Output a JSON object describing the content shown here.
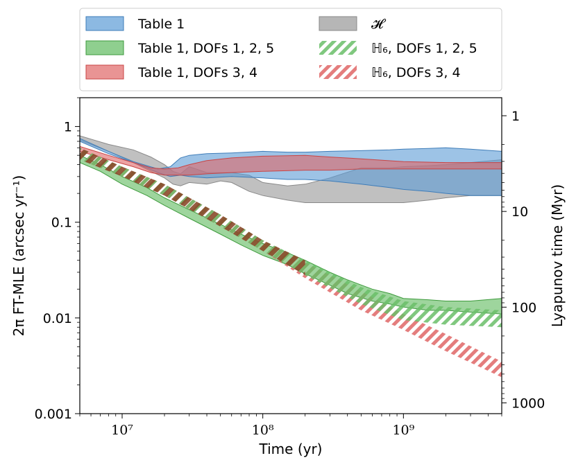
{
  "chart_data": {
    "type": "area",
    "xscale": "log",
    "yscale": "log",
    "xlim": [
      5000000,
      5000000000
    ],
    "ylim": [
      0.001,
      2
    ],
    "xlabel": "Time (yr)",
    "ylabel": "2π FT-MLE (arcsec yr⁻¹)",
    "ylabel_right": "Lyapunov time (Myr)",
    "x_ticks": [
      {
        "value": 10000000,
        "label": "10⁷"
      },
      {
        "value": 100000000,
        "label": "10⁸"
      },
      {
        "value": 1000000000,
        "label": "10⁹"
      }
    ],
    "y_ticks": [
      {
        "value": 1,
        "label": "1"
      },
      {
        "value": 0.1,
        "label": "0.1"
      },
      {
        "value": 0.01,
        "label": "0.01"
      },
      {
        "value": 0.001,
        "label": "0.001"
      }
    ],
    "y_right_ticks": [
      {
        "value": 1,
        "label": "1"
      },
      {
        "value": 10,
        "label": "10"
      },
      {
        "value": 100,
        "label": "100"
      },
      {
        "value": 1000,
        "label": "1000"
      }
    ],
    "legend": {
      "placement": "top, outside",
      "columns": 2
    },
    "series": [
      {
        "name": "Table 1",
        "style": "band",
        "color": "#5b9bd5",
        "x": [
          5000000.0,
          8000000.0,
          12000000.0,
          18000000.0,
          22000000.0,
          26000000.0,
          30000000.0,
          40000000.0,
          60000000.0,
          100000000.0,
          150000000.0,
          200000000.0,
          300000000.0,
          500000000.0,
          800000000.0,
          1000000000.0,
          1500000000.0,
          2000000000.0,
          3000000000.0,
          5000000000.0
        ],
        "lower": [
          0.7,
          0.52,
          0.42,
          0.33,
          0.3,
          0.31,
          0.3,
          0.29,
          0.3,
          0.29,
          0.28,
          0.28,
          0.27,
          0.25,
          0.23,
          0.22,
          0.21,
          0.2,
          0.19,
          0.19
        ],
        "upper": [
          0.75,
          0.55,
          0.43,
          0.36,
          0.38,
          0.47,
          0.5,
          0.52,
          0.53,
          0.55,
          0.54,
          0.54,
          0.55,
          0.56,
          0.57,
          0.58,
          0.59,
          0.6,
          0.58,
          0.55
        ]
      },
      {
        "name": "Table 1, DOFs 1, 2, 5",
        "style": "band",
        "color": "#6abf69",
        "x": [
          5000000.0,
          7000000.0,
          10000000.0,
          15000000.0,
          20000000.0,
          30000000.0,
          50000000.0,
          70000000.0,
          100000000.0,
          150000000.0,
          200000000.0,
          300000000.0,
          400000000.0,
          600000000.0,
          800000000.0,
          1000000000.0,
          1500000000.0,
          2000000000.0,
          3000000000.0,
          5000000000.0
        ],
        "lower": [
          0.42,
          0.34,
          0.25,
          0.19,
          0.15,
          0.11,
          0.075,
          0.058,
          0.045,
          0.036,
          0.029,
          0.022,
          0.018,
          0.015,
          0.014,
          0.013,
          0.012,
          0.012,
          0.0115,
          0.011
        ],
        "upper": [
          0.5,
          0.4,
          0.3,
          0.23,
          0.18,
          0.135,
          0.095,
          0.075,
          0.06,
          0.048,
          0.04,
          0.03,
          0.025,
          0.02,
          0.018,
          0.016,
          0.0155,
          0.015,
          0.015,
          0.016
        ]
      },
      {
        "name": "Table 1, DOFs 3, 4",
        "style": "band",
        "color": "#e06666",
        "x": [
          5000000.0,
          8000000.0,
          12000000.0,
          16000000.0,
          20000000.0,
          25000000.0,
          30000000.0,
          40000000.0,
          60000000.0,
          100000000.0,
          200000000.0,
          300000000.0,
          500000000.0,
          1000000000.0,
          2000000000.0,
          5000000000.0
        ],
        "lower": [
          0.55,
          0.45,
          0.38,
          0.33,
          0.31,
          0.31,
          0.31,
          0.32,
          0.33,
          0.34,
          0.35,
          0.35,
          0.36,
          0.36,
          0.36,
          0.36
        ],
        "upper": [
          0.62,
          0.5,
          0.42,
          0.37,
          0.36,
          0.37,
          0.4,
          0.44,
          0.47,
          0.49,
          0.5,
          0.48,
          0.46,
          0.43,
          0.42,
          0.42
        ]
      },
      {
        "name": "𝓗",
        "style": "band",
        "color": "#a6a6a6",
        "x": [
          5000000.0,
          8000000.0,
          12000000.0,
          16000000.0,
          20000000.0,
          23000000.0,
          26000000.0,
          30000000.0,
          40000000.0,
          50000000.0,
          60000000.0,
          80000000.0,
          100000000.0,
          150000000.0,
          200000000.0,
          300000000.0,
          500000000.0,
          800000000.0,
          1000000000.0,
          1500000000.0,
          2000000000.0,
          3000000000.0,
          5000000000.0
        ],
        "lower": [
          0.72,
          0.55,
          0.42,
          0.34,
          0.29,
          0.25,
          0.24,
          0.26,
          0.25,
          0.27,
          0.26,
          0.21,
          0.19,
          0.17,
          0.16,
          0.16,
          0.16,
          0.16,
          0.16,
          0.17,
          0.18,
          0.19,
          0.19
        ],
        "upper": [
          0.8,
          0.65,
          0.57,
          0.48,
          0.4,
          0.34,
          0.32,
          0.38,
          0.33,
          0.33,
          0.33,
          0.31,
          0.26,
          0.24,
          0.25,
          0.29,
          0.37,
          0.37,
          0.38,
          0.39,
          0.4,
          0.42,
          0.45
        ]
      },
      {
        "name": "ℍ₆, DOFs 1, 2, 5",
        "style": "hatched band",
        "color": "#6abf69",
        "x": [
          5000000.0,
          10000000.0,
          20000000.0,
          50000000.0,
          100000000.0,
          200000000.0,
          500000000.0,
          1000000000.0,
          2000000000.0,
          5000000000.0
        ],
        "lower": [
          0.45,
          0.3,
          0.19,
          0.09,
          0.05,
          0.028,
          0.014,
          0.0095,
          0.0085,
          0.008
        ],
        "upper": [
          0.6,
          0.38,
          0.25,
          0.12,
          0.065,
          0.04,
          0.021,
          0.015,
          0.013,
          0.012
        ]
      },
      {
        "name": "ℍ₆, DOFs 3, 4",
        "style": "hatched band",
        "color": "#e06666",
        "x": [
          5000000.0,
          10000000.0,
          20000000.0,
          50000000.0,
          100000000.0,
          200000000.0,
          500000000.0,
          1000000000.0,
          2000000000.0,
          5000000000.0
        ],
        "lower": [
          0.45,
          0.3,
          0.19,
          0.09,
          0.05,
          0.026,
          0.012,
          0.0075,
          0.0045,
          0.0024
        ],
        "upper": [
          0.6,
          0.38,
          0.25,
          0.12,
          0.065,
          0.038,
          0.019,
          0.011,
          0.0068,
          0.0035
        ]
      }
    ]
  }
}
